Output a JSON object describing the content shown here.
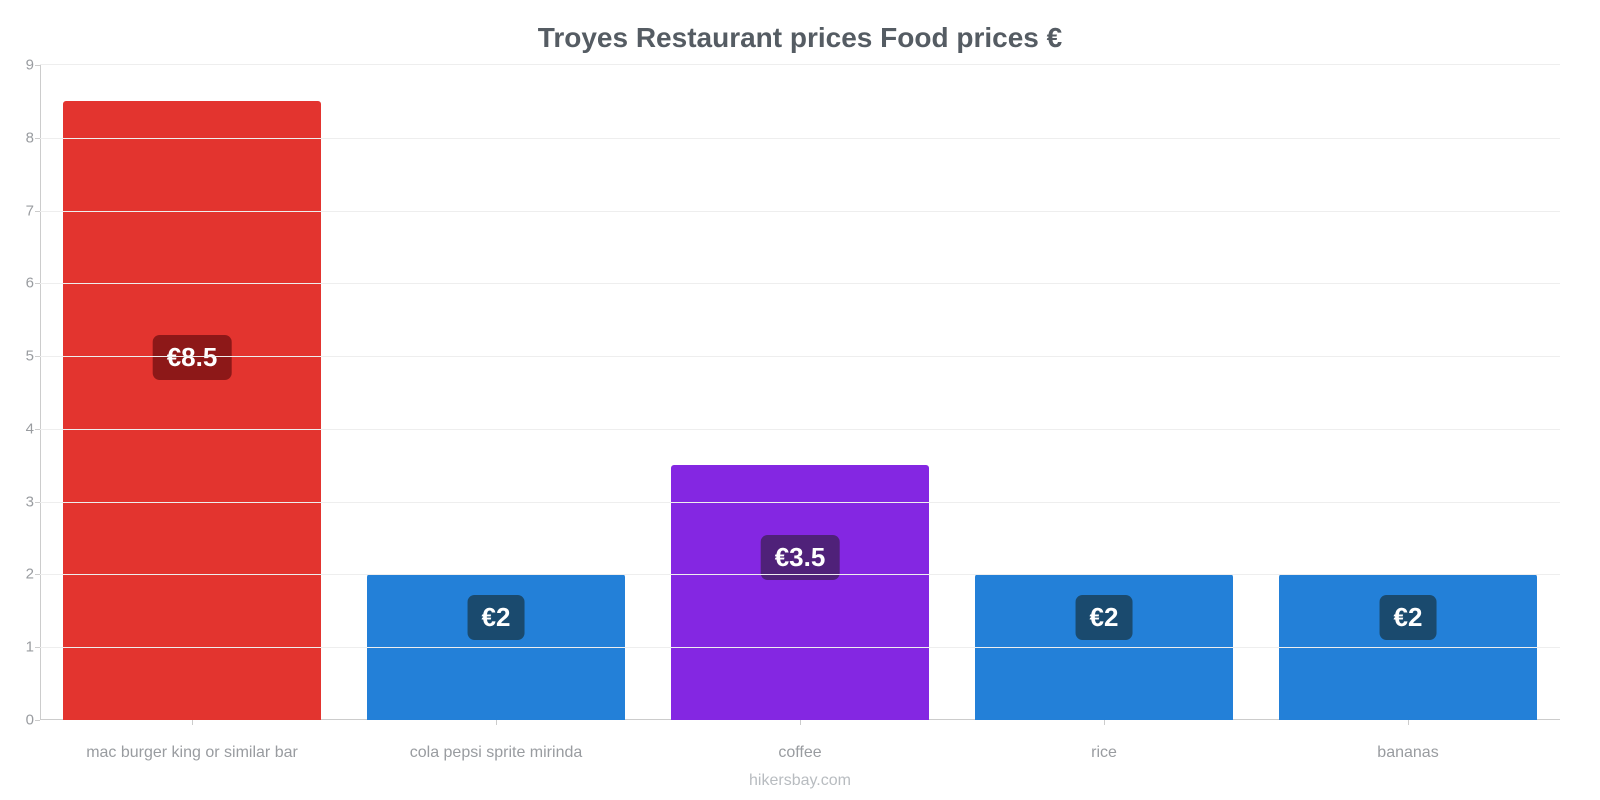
{
  "chart": {
    "type": "bar",
    "title": "Troyes Restaurant prices Food prices €",
    "title_fontsize": 28,
    "title_color": "#555c63",
    "background_color": "#ffffff",
    "grid_color": "#eeeeee",
    "axis_color": "#cccccc",
    "label_color": "#999ca0",
    "label_fontsize": 16,
    "attribution": "hikersbay.com",
    "attribution_color": "#b8bcc0",
    "ylim": [
      0,
      9
    ],
    "yticks": [
      0,
      1,
      2,
      3,
      4,
      5,
      6,
      7,
      8,
      9
    ],
    "bar_width_pct": 85,
    "categories": [
      "mac burger king or similar bar",
      "cola pepsi sprite mirinda",
      "coffee",
      "rice",
      "bananas"
    ],
    "values": [
      8.5,
      2,
      3.5,
      2,
      2
    ],
    "display_values": [
      "€8.5",
      "€2",
      "€3.5",
      "€2",
      "€2"
    ],
    "bar_colors": [
      "#e3342f",
      "#2380d8",
      "#8427e2",
      "#2380d8",
      "#2380d8"
    ],
    "badge_colors": [
      "#8d1818",
      "#1a4a6e",
      "#4f2179",
      "#1a4a6e",
      "#1a4a6e"
    ],
    "badge_fontsize": 26
  }
}
